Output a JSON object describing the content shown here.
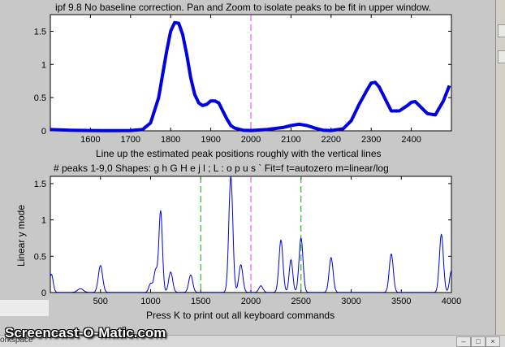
{
  "window": {
    "title": "ipf 9.8 No baseline correction. Pan and Zoom to isolate peaks to be fit in upper window."
  },
  "chart_data": [
    {
      "type": "line",
      "title": "ipf 9.8 No baseline correction. Pan and Zoom to isolate peaks to be fit in upper window.",
      "xlim": [
        1500,
        2500
      ],
      "ylim": [
        0,
        1.75
      ],
      "xticks": [
        "1600",
        "1700",
        "1800",
        "1900",
        "2000",
        "2100",
        "2200",
        "2300",
        "2400"
      ],
      "yticks": [
        "0",
        "0.5",
        "1",
        "1.5"
      ],
      "xlabel": "Line up the estimated peak positions roughly with the vertical lines",
      "ylabel": "",
      "vertical_lines": [
        {
          "x": 2000,
          "color": "#e040e0",
          "style": "dashed"
        }
      ],
      "series": [
        {
          "color": "#0000e0",
          "x": [
            1500,
            1550,
            1600,
            1650,
            1700,
            1730,
            1750,
            1770,
            1790,
            1800,
            1810,
            1820,
            1830,
            1840,
            1850,
            1860,
            1870,
            1880,
            1890,
            1900,
            1910,
            1920,
            1930,
            1940,
            1950,
            1960,
            1980,
            2000,
            2040,
            2080,
            2100,
            2120,
            2140,
            2160,
            2180,
            2200,
            2230,
            2250,
            2270,
            2290,
            2300,
            2310,
            2320,
            2330,
            2350,
            2370,
            2390,
            2400,
            2410,
            2420,
            2440,
            2460,
            2480,
            2495
          ],
          "y": [
            0.02,
            0.01,
            0.005,
            0.003,
            0.005,
            0.02,
            0.12,
            0.5,
            1.2,
            1.5,
            1.63,
            1.62,
            1.45,
            1.15,
            0.8,
            0.55,
            0.42,
            0.38,
            0.4,
            0.45,
            0.45,
            0.42,
            0.3,
            0.18,
            0.08,
            0.04,
            0.01,
            0.005,
            0.02,
            0.05,
            0.08,
            0.1,
            0.08,
            0.04,
            0.01,
            0.005,
            0.03,
            0.15,
            0.4,
            0.62,
            0.72,
            0.73,
            0.66,
            0.54,
            0.3,
            0.3,
            0.38,
            0.43,
            0.44,
            0.38,
            0.26,
            0.24,
            0.45,
            0.68
          ]
        }
      ]
    },
    {
      "type": "line",
      "title": "# peaks 1-9,0   Shapes: g h G H e j l ; L : o p u s `   Fit=f   t=autozero   m=linear/log",
      "xlim": [
        0,
        4000
      ],
      "ylim": [
        0,
        1.6
      ],
      "xticks": [
        "500",
        "1000",
        "1500",
        "2000",
        "2500",
        "3000",
        "3500",
        "4000"
      ],
      "yticks": [
        "0",
        "0.5",
        "1",
        "1.5"
      ],
      "xlabel": "Press K to print out all keyboard commands",
      "ylabel": "Linear y mode",
      "vertical_lines": [
        {
          "x": 1500,
          "color": "#00b000",
          "style": "dashed"
        },
        {
          "x": 2000,
          "color": "#e040e0",
          "style": "dashed"
        },
        {
          "x": 2500,
          "color": "#00b000",
          "style": "dashed"
        }
      ],
      "peaks": [
        {
          "center": 10,
          "height": 0.25,
          "width": 25
        },
        {
          "center": 300,
          "height": 0.05,
          "width": 40
        },
        {
          "center": 500,
          "height": 0.37,
          "width": 30
        },
        {
          "center": 1000,
          "height": 0.12,
          "width": 25
        },
        {
          "center": 1050,
          "height": 0.3,
          "width": 25
        },
        {
          "center": 1100,
          "height": 1.12,
          "width": 25
        },
        {
          "center": 1200,
          "height": 0.28,
          "width": 28
        },
        {
          "center": 1400,
          "height": 0.24,
          "width": 28
        },
        {
          "center": 1800,
          "height": 1.6,
          "width": 28
        },
        {
          "center": 1900,
          "height": 0.38,
          "width": 28
        },
        {
          "center": 2100,
          "height": 0.09,
          "width": 28
        },
        {
          "center": 2300,
          "height": 0.72,
          "width": 28
        },
        {
          "center": 2400,
          "height": 0.45,
          "width": 25
        },
        {
          "center": 2500,
          "height": 0.75,
          "width": 28
        },
        {
          "center": 2800,
          "height": 0.48,
          "width": 28
        },
        {
          "center": 3400,
          "height": 0.53,
          "width": 28
        },
        {
          "center": 3900,
          "height": 0.8,
          "width": 28
        },
        {
          "center": 4000,
          "height": 0.3,
          "width": 25
        }
      ],
      "series": [
        {
          "color": "#0000e0"
        }
      ]
    }
  ],
  "overlay": {
    "watermark": "Screencast-O-Matic.com",
    "bottom_left": "orkspace"
  },
  "window_controls": {
    "minimize": "–",
    "maximize": "□",
    "close": "×"
  }
}
